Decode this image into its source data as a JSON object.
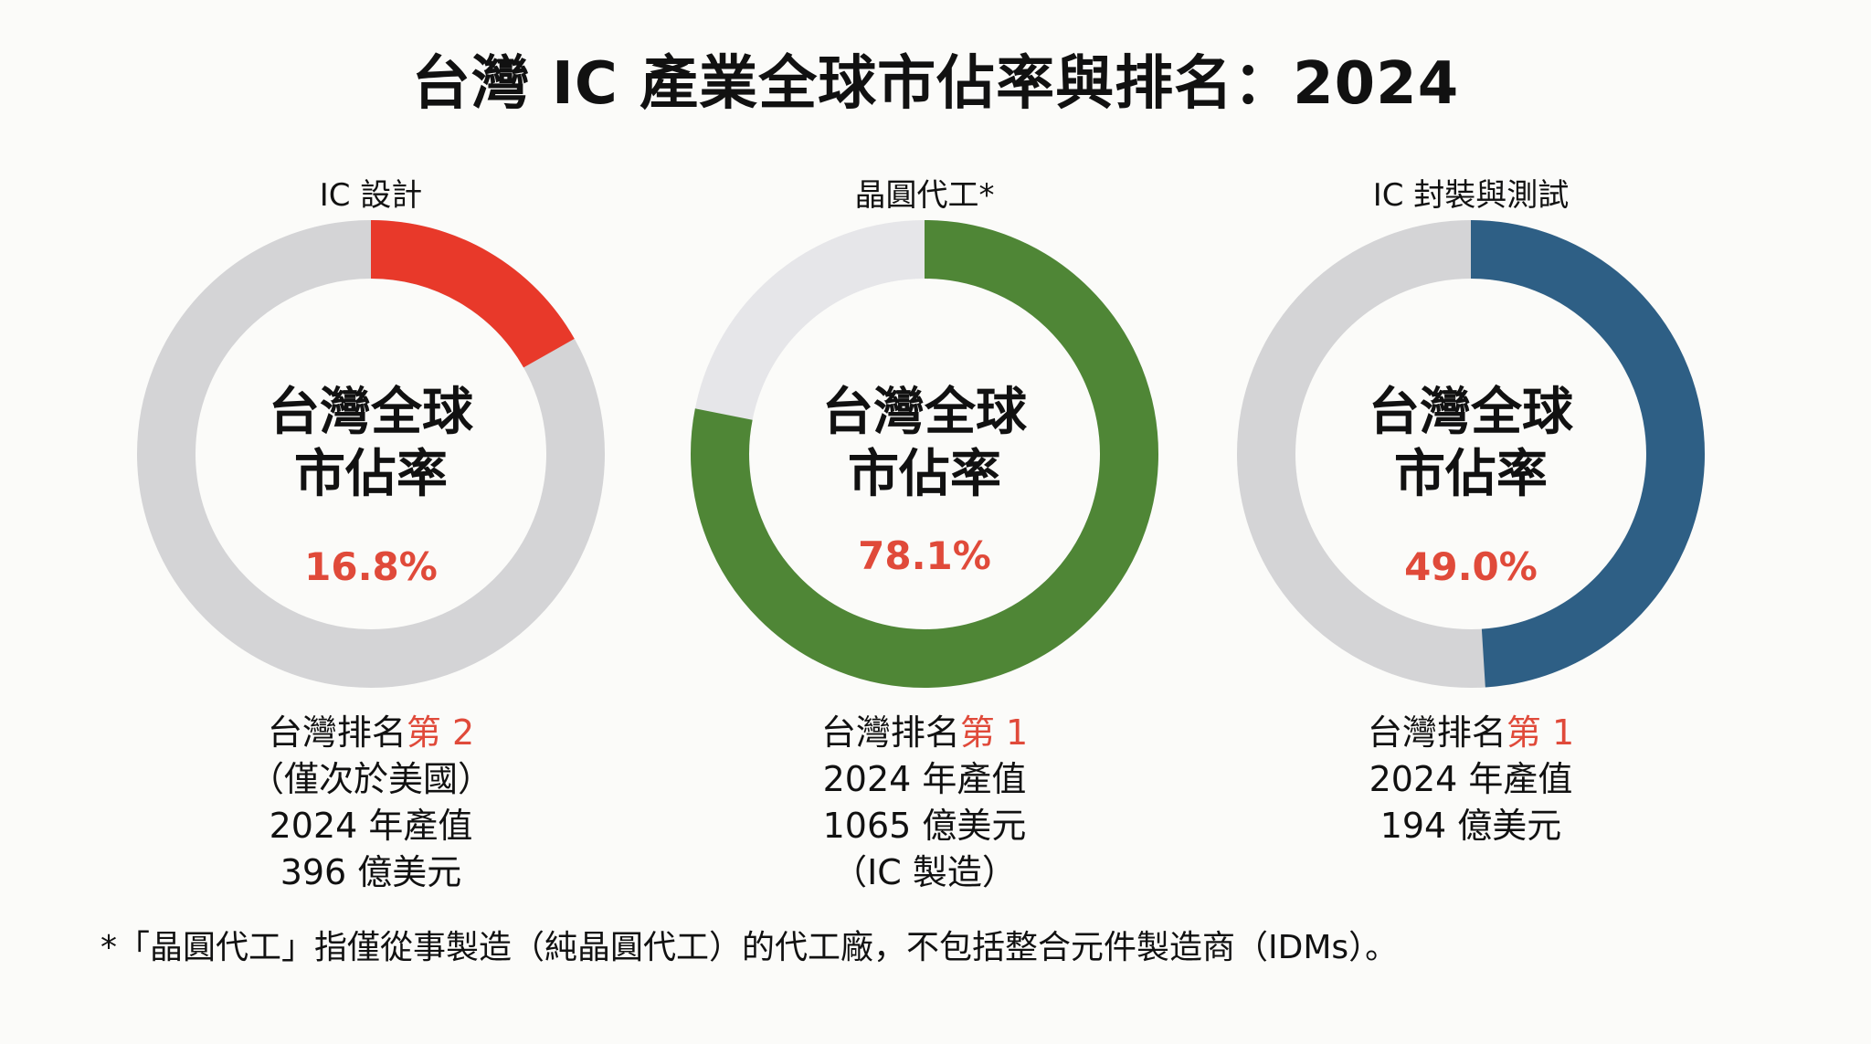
{
  "title": "台灣 IC 產業全球市佔率與排名：2024",
  "colors": {
    "remainder": "#d4d4d6",
    "remainder_light": "#e6e6e9",
    "percent_text": "#e04a3a"
  },
  "chart_data": [
    {
      "type": "pie",
      "title": "IC 設計",
      "center_label": [
        "台灣全球",
        "市佔率"
      ],
      "value": 16.8,
      "value_label": "16.8%",
      "color": "#e8392a",
      "remainder_color": "#d4d4d6",
      "info": {
        "rank_prefix": "台灣排名",
        "rank": "第 2",
        "lines": [
          "（僅次於美國）",
          "2024 年產值",
          "396 億美元"
        ]
      }
    },
    {
      "type": "pie",
      "title": "晶圓代工*",
      "center_label": [
        "台灣全球",
        "市佔率"
      ],
      "value": 78.1,
      "value_label": "78.1%",
      "color": "#4f8636",
      "remainder_color": "#e6e6e9",
      "info": {
        "rank_prefix": "台灣排名",
        "rank": "第 1",
        "lines": [
          "2024 年產值",
          "1065 億美元",
          "（IC 製造）"
        ]
      }
    },
    {
      "type": "pie",
      "title": "IC 封裝與測試",
      "center_label": [
        "台灣全球",
        "市佔率"
      ],
      "value": 49.0,
      "value_label": "49.0%",
      "color": "#2e5f85",
      "remainder_color": "#d4d4d6",
      "info": {
        "rank_prefix": "台灣排名",
        "rank": "第 1",
        "lines": [
          "2024 年產值",
          "194 億美元"
        ]
      }
    }
  ],
  "footnote": "*「晶圓代工」指僅從事製造（純晶圓代工）的代工廠，不包括整合元件製造商（IDMs）。"
}
